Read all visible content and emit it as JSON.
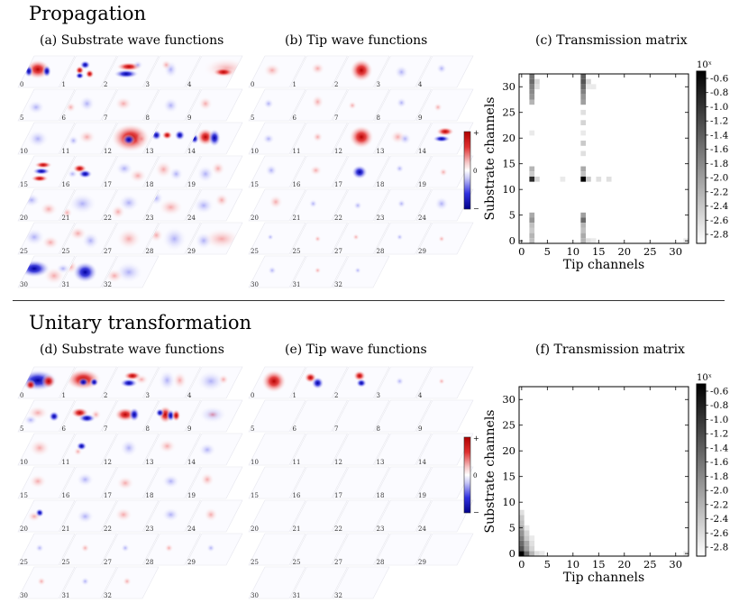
{
  "sections": [
    {
      "title": "Propagation",
      "substrate_label": "(a) Substrate wave functions",
      "tip_label": "(b) Tip wave functions",
      "matrix_label": "(c) Transmission matrix",
      "tile_numbers": [
        "0",
        "1",
        "2",
        "3",
        "4",
        "5",
        "6",
        "7",
        "8",
        "9",
        "10",
        "11",
        "12",
        "13",
        "14",
        "15",
        "16",
        "17",
        "18",
        "19",
        "20",
        "21",
        "22",
        "23",
        "24",
        "25",
        "25",
        "27",
        "28",
        "29",
        "30",
        "31",
        "32"
      ],
      "colorbar": {
        "top": "+",
        "middle": "0",
        "bottom": "−"
      },
      "chart_data": {
        "type": "heatmap",
        "xlabel": "Tip channels",
        "ylabel": "Substrate channels",
        "xticks": [
          0,
          5,
          10,
          15,
          20,
          25,
          30
        ],
        "yticks": [
          0,
          5,
          10,
          15,
          20,
          25,
          30
        ],
        "xlim": [
          0,
          32
        ],
        "ylim": [
          0,
          32
        ],
        "colorbar_label": "10ˣ",
        "colorbar_ticks": [
          "-0.6",
          "-0.8",
          "-1.0",
          "-1.2",
          "-1.4",
          "-1.6",
          "-1.8",
          "-2.0",
          "-2.2",
          "-2.4",
          "-2.6",
          "-2.8"
        ],
        "cells": [
          {
            "x": 2,
            "y": 32,
            "v": -1.7
          },
          {
            "x": 2,
            "y": 31,
            "v": -1.6
          },
          {
            "x": 2,
            "y": 30,
            "v": -1.8
          },
          {
            "x": 2,
            "y": 29,
            "v": -1.9
          },
          {
            "x": 2,
            "y": 28,
            "v": -2.0
          },
          {
            "x": 2,
            "y": 27,
            "v": -2.3
          },
          {
            "x": 3,
            "y": 31,
            "v": -2.6
          },
          {
            "x": 3,
            "y": 30,
            "v": -2.7
          },
          {
            "x": 12,
            "y": 32,
            "v": -1.5
          },
          {
            "x": 12,
            "y": 31,
            "v": -1.4
          },
          {
            "x": 12,
            "y": 30,
            "v": -1.6
          },
          {
            "x": 12,
            "y": 29,
            "v": -1.8
          },
          {
            "x": 12,
            "y": 28,
            "v": -2.0
          },
          {
            "x": 12,
            "y": 27,
            "v": -2.1
          },
          {
            "x": 13,
            "y": 31,
            "v": -2.6
          },
          {
            "x": 13,
            "y": 30,
            "v": -2.8
          },
          {
            "x": 14,
            "y": 30,
            "v": -2.8
          },
          {
            "x": 12,
            "y": 25,
            "v": -2.7
          },
          {
            "x": 12,
            "y": 23,
            "v": -2.6
          },
          {
            "x": 12,
            "y": 21,
            "v": -2.8
          },
          {
            "x": 12,
            "y": 19,
            "v": -2.5
          },
          {
            "x": 12,
            "y": 17,
            "v": -2.7
          },
          {
            "x": 2,
            "y": 21,
            "v": -2.8
          },
          {
            "x": 2,
            "y": 14,
            "v": -2.3
          },
          {
            "x": 2,
            "y": 13,
            "v": -2.5
          },
          {
            "x": 2,
            "y": 12,
            "v": -1.0
          },
          {
            "x": 3,
            "y": 12,
            "v": -2.6
          },
          {
            "x": 8,
            "y": 12,
            "v": -2.8
          },
          {
            "x": 12,
            "y": 14,
            "v": -2.2
          },
          {
            "x": 12,
            "y": 13,
            "v": -2.4
          },
          {
            "x": 12,
            "y": 12,
            "v": -0.6
          },
          {
            "x": 13,
            "y": 12,
            "v": -2.5
          },
          {
            "x": 15,
            "y": 12,
            "v": -2.7
          },
          {
            "x": 17,
            "y": 12,
            "v": -2.7
          },
          {
            "x": 2,
            "y": 5,
            "v": -2.2
          },
          {
            "x": 2,
            "y": 4,
            "v": -2.0
          },
          {
            "x": 2,
            "y": 3,
            "v": -2.4
          },
          {
            "x": 2,
            "y": 2,
            "v": -2.5
          },
          {
            "x": 2,
            "y": 1,
            "v": -2.3
          },
          {
            "x": 2,
            "y": 0,
            "v": -2.4
          },
          {
            "x": 12,
            "y": 5,
            "v": -2.1
          },
          {
            "x": 12,
            "y": 4,
            "v": -1.6
          },
          {
            "x": 12,
            "y": 3,
            "v": -2.3
          },
          {
            "x": 12,
            "y": 2,
            "v": -2.4
          },
          {
            "x": 12,
            "y": 1,
            "v": -2.2
          },
          {
            "x": 12,
            "y": 0,
            "v": -2.3
          },
          {
            "x": 13,
            "y": 0,
            "v": -2.7
          },
          {
            "x": 14,
            "y": 0,
            "v": -2.8
          },
          {
            "x": 32,
            "y": 0,
            "v": -2.8
          }
        ]
      }
    },
    {
      "title": "Unitary transformation",
      "substrate_label": "(d) Substrate wave functions",
      "tip_label": "(e) Tip wave functions",
      "matrix_label": "(f) Transmission matrix",
      "tile_numbers": [
        "0",
        "1",
        "2",
        "3",
        "4",
        "5",
        "6",
        "7",
        "8",
        "9",
        "10",
        "11",
        "12",
        "13",
        "14",
        "15",
        "16",
        "17",
        "18",
        "19",
        "20",
        "21",
        "22",
        "23",
        "24",
        "25",
        "25",
        "27",
        "28",
        "29",
        "30",
        "31",
        "32"
      ],
      "colorbar": {
        "top": "+",
        "middle": "0",
        "bottom": "−"
      },
      "chart_data": {
        "type": "heatmap",
        "xlabel": "Tip channels",
        "ylabel": "Substrate channels",
        "xticks": [
          0,
          5,
          10,
          15,
          20,
          25,
          30
        ],
        "yticks": [
          0,
          5,
          10,
          15,
          20,
          25,
          30
        ],
        "xlim": [
          0,
          32
        ],
        "ylim": [
          0,
          32
        ],
        "colorbar_label": "10ˣ",
        "colorbar_ticks": [
          "-0.6",
          "-0.8",
          "-1.0",
          "-1.2",
          "-1.4",
          "-1.6",
          "-1.8",
          "-2.0",
          "-2.2",
          "-2.4",
          "-2.6",
          "-2.8"
        ],
        "cells": [
          {
            "x": 0,
            "y": 0,
            "v": -0.6
          },
          {
            "x": 0,
            "y": 1,
            "v": -1.4
          },
          {
            "x": 0,
            "y": 2,
            "v": -1.6
          },
          {
            "x": 0,
            "y": 3,
            "v": -1.8
          },
          {
            "x": 0,
            "y": 4,
            "v": -2.0
          },
          {
            "x": 0,
            "y": 5,
            "v": -2.2
          },
          {
            "x": 0,
            "y": 6,
            "v": -2.4
          },
          {
            "x": 0,
            "y": 7,
            "v": -2.5
          },
          {
            "x": 0,
            "y": 8,
            "v": -2.7
          },
          {
            "x": 1,
            "y": 0,
            "v": -1.6
          },
          {
            "x": 1,
            "y": 1,
            "v": -2.1
          },
          {
            "x": 1,
            "y": 2,
            "v": -2.2
          },
          {
            "x": 1,
            "y": 3,
            "v": -2.5
          },
          {
            "x": 1,
            "y": 4,
            "v": -2.6
          },
          {
            "x": 1,
            "y": 5,
            "v": -2.8
          },
          {
            "x": 2,
            "y": 0,
            "v": -2.3
          },
          {
            "x": 2,
            "y": 1,
            "v": -2.6
          },
          {
            "x": 2,
            "y": 2,
            "v": -2.7
          },
          {
            "x": 2,
            "y": 3,
            "v": -2.8
          },
          {
            "x": 3,
            "y": 0,
            "v": -2.7
          },
          {
            "x": 4,
            "y": 0,
            "v": -2.8
          },
          {
            "x": 32,
            "y": 0,
            "v": -2.8
          }
        ]
      }
    }
  ]
}
